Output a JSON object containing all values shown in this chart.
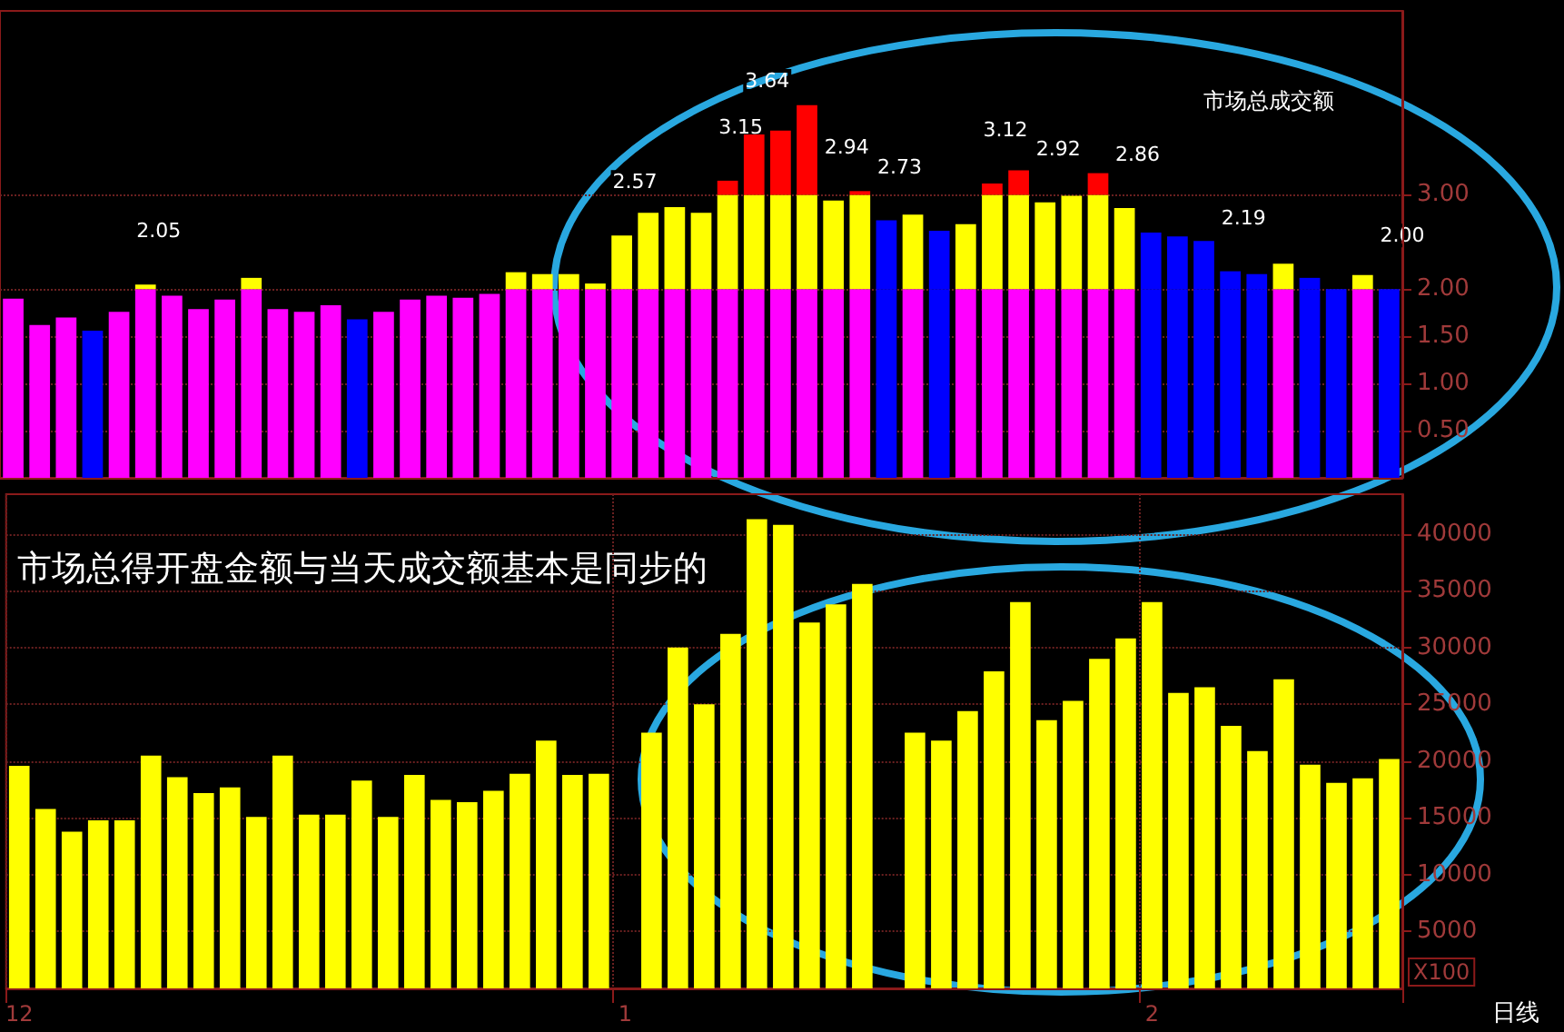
{
  "chart_data": [
    {
      "type": "bar",
      "stacked": true,
      "grid": true,
      "tick_labels": "y",
      "categories": [
        null,
        null,
        null,
        null,
        null,
        null,
        null,
        null,
        null,
        null,
        null,
        null,
        null,
        null,
        null,
        null,
        null,
        null,
        null,
        null,
        null,
        null,
        null,
        null,
        null,
        null,
        null,
        null,
        null,
        null,
        null,
        null,
        null,
        null,
        null,
        null,
        null,
        null,
        null,
        null,
        null,
        null,
        null,
        null,
        null,
        null,
        null,
        null,
        null,
        null,
        null,
        null,
        null
      ],
      "series": [
        {
          "colors": [
            "#ff00ff",
            "#ff00ff",
            "#ff00ff",
            "#0000ff",
            "#ff00ff",
            "#ff00ff",
            "#ff00ff",
            "#ff00ff",
            "#ff00ff",
            "#ff00ff",
            "#ff00ff",
            "#ff00ff",
            "#ff00ff",
            "#0000ff",
            "#ff00ff",
            "#ff00ff",
            "#ff00ff",
            "#ff00ff",
            "#ff00ff",
            "#ff00ff",
            "#ff00ff",
            "#ff00ff",
            "#ff00ff",
            "#ff00ff",
            "#ff00ff",
            "#ff00ff",
            "#ff00ff",
            "#ff00ff",
            "#ff00ff",
            "#ff00ff",
            "#ff00ff",
            "#ff00ff",
            "#ff00ff",
            "#0000ff",
            "#ff00ff",
            "#0000ff",
            "#ff00ff",
            "#ff00ff",
            "#ff00ff",
            "#ff00ff",
            "#ff00ff",
            "#ff00ff",
            "#ff00ff",
            "#0000ff",
            "#0000ff",
            "#0000ff",
            "#0000ff",
            "#0000ff",
            "#ff00ff",
            "#0000ff",
            "#0000ff",
            "#ff00ff",
            "#0000ff"
          ],
          "values": [
            1.9,
            1.62,
            1.7,
            1.56,
            1.76,
            2,
            1.93,
            1.79,
            1.89,
            2,
            1.79,
            1.76,
            1.83,
            1.68,
            1.76,
            1.89,
            1.93,
            1.91,
            1.95,
            2,
            2,
            2,
            2,
            2,
            2,
            2,
            2,
            2,
            2,
            2,
            2,
            2,
            2,
            2,
            2,
            2,
            2,
            2,
            2,
            2,
            2,
            2,
            2,
            2,
            2,
            2,
            2,
            2,
            2,
            2,
            2,
            2,
            2
          ]
        },
        {
          "colors": [
            "#ffff00",
            "#ffff00",
            "#ffff00",
            "#ffff00",
            "#ffff00",
            "#ffff00",
            "#ffff00",
            "#ffff00",
            "#ffff00",
            "#ffff00",
            "#ffff00",
            "#ffff00",
            "#ffff00",
            "#ffff00",
            "#ffff00",
            "#ffff00",
            "#ffff00",
            "#ffff00",
            "#ffff00",
            "#ffff00",
            "#ffff00",
            "#ffff00",
            "#ffff00",
            "#ffff00",
            "#ffff00",
            "#ffff00",
            "#ffff00",
            "#ffff00",
            "#ffff00",
            "#ffff00",
            "#ffff00",
            "#ffff00",
            "#ffff00",
            "#0000ff",
            "#ffff00",
            "#0000ff",
            "#ffff00",
            "#ffff00",
            "#ffff00",
            "#ffff00",
            "#ffff00",
            "#ffff00",
            "#ffff00",
            "#0000ff",
            "#0000ff",
            "#0000ff",
            "#0000ff",
            "#0000ff",
            "#ffff00",
            "#0000ff",
            "#0000ff",
            "#ffff00",
            "#0000ff"
          ],
          "values": [
            null,
            null,
            null,
            null,
            null,
            0.05,
            null,
            null,
            null,
            0.12,
            null,
            null,
            null,
            null,
            null,
            null,
            null,
            null,
            null,
            0.18,
            0.16,
            0.16,
            0.06,
            0.57,
            0.81,
            0.87,
            0.81,
            1,
            1,
            1,
            1,
            0.94,
            1,
            0.73,
            0.79,
            0.62,
            0.69,
            1,
            1,
            0.92,
            0.99,
            1,
            0.86,
            0.6,
            0.56,
            0.51,
            0.19,
            0.16,
            0.27,
            0.12,
            null,
            0.15,
            null
          ]
        },
        {
          "color": "#ff0000",
          "values": [
            null,
            null,
            null,
            null,
            null,
            null,
            null,
            null,
            null,
            null,
            null,
            null,
            null,
            null,
            null,
            null,
            null,
            null,
            null,
            null,
            null,
            null,
            null,
            null,
            null,
            null,
            null,
            0.15,
            0.64,
            0.68,
            0.95,
            null,
            0.04,
            null,
            null,
            null,
            null,
            0.12,
            0.26,
            null,
            null,
            0.23,
            null,
            null,
            null,
            null,
            null,
            null,
            null,
            null,
            null,
            null,
            null
          ]
        }
      ],
      "totals": [
        null,
        null,
        null,
        null,
        null,
        "2.05",
        null,
        null,
        null,
        null,
        null,
        null,
        null,
        null,
        null,
        null,
        null,
        null,
        null,
        null,
        null,
        null,
        null,
        "2.57",
        null,
        null,
        null,
        "3.15",
        "3.64",
        null,
        null,
        "2.94",
        null,
        "2.73",
        null,
        null,
        null,
        "3.12",
        null,
        "2.92",
        null,
        null,
        "2.86",
        null,
        null,
        null,
        "2.19",
        null,
        null,
        null,
        null,
        null,
        "2.00"
      ],
      "ylim": [
        0,
        4.95
      ],
      "yticks": [
        {
          "value": 0.5,
          "label": "0.50"
        },
        {
          "value": 1,
          "label": "1.00"
        },
        {
          "value": 1.5,
          "label": "1.50"
        },
        {
          "value": 2,
          "label": "2.00"
        },
        {
          "value": 3,
          "label": "3.00"
        }
      ],
      "annotations": [
        "市场总成交额"
      ]
    },
    {
      "type": "bar",
      "grid": true,
      "color": "#ffff00",
      "ylabel": "X100",
      "categories": [
        "12",
        null,
        null,
        null,
        null,
        null,
        null,
        null,
        null,
        null,
        null,
        null,
        null,
        null,
        null,
        null,
        null,
        null,
        null,
        null,
        null,
        null,
        null,
        "1",
        null,
        null,
        null,
        null,
        null,
        null,
        null,
        null,
        null,
        null,
        null,
        null,
        null,
        null,
        null,
        null,
        null,
        null,
        null,
        "2",
        null,
        null,
        null,
        null,
        null,
        null,
        null,
        null,
        null
      ],
      "values": [
        19600,
        15800,
        13800,
        14800,
        14800,
        20500,
        18600,
        17200,
        17700,
        15100,
        20500,
        15300,
        15300,
        18300,
        15100,
        18800,
        16600,
        16400,
        17400,
        18900,
        21800,
        18800,
        18900,
        null,
        22500,
        30000,
        25000,
        31200,
        41300,
        40800,
        32200,
        33800,
        35600,
        null,
        22500,
        21800,
        24400,
        27900,
        34000,
        23600,
        25300,
        29000,
        30800,
        34000,
        26000,
        26500,
        23100,
        20900,
        27200,
        19700,
        18100,
        18500,
        20200
      ],
      "ylim": [
        0,
        43500
      ],
      "yticks": [
        5000,
        10000,
        15000,
        20000,
        25000,
        30000,
        35000,
        40000
      ],
      "annotations": [
        "市场总得开盘金额与当天成交额基本是同步的",
        "日线"
      ]
    }
  ]
}
